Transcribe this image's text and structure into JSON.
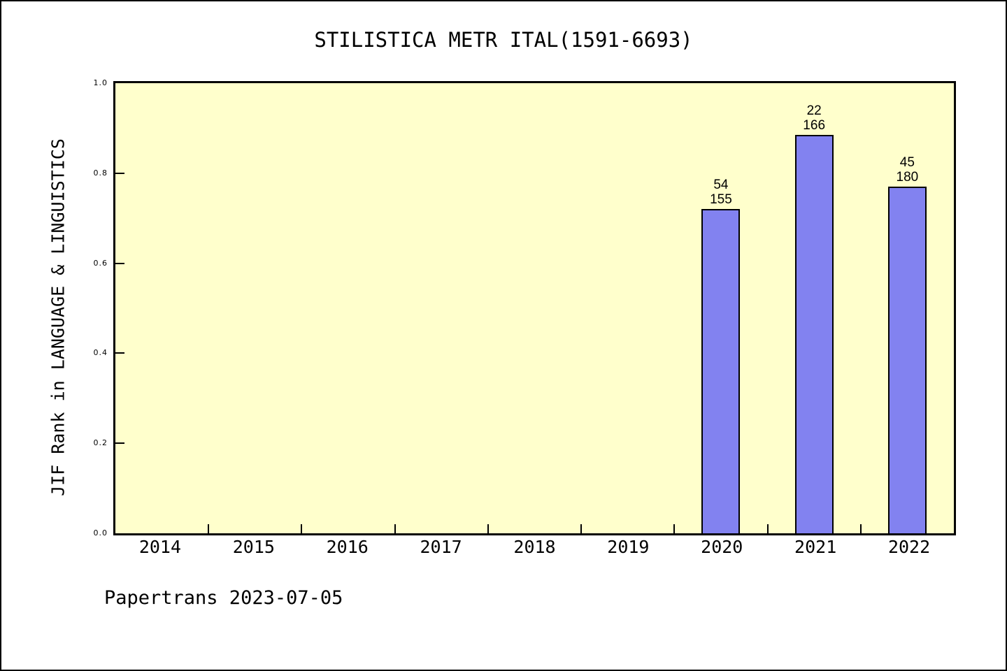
{
  "chart_data": {
    "type": "bar",
    "title": "STILISTICA METR ITAL(1591-6693)",
    "ylabel": "JIF Rank in LANGUAGE & LINGUISTICS",
    "xlabel": "",
    "categories": [
      "2014",
      "2015",
      "2016",
      "2017",
      "2018",
      "2019",
      "2020",
      "2021",
      "2022"
    ],
    "values": [
      null,
      null,
      null,
      null,
      null,
      null,
      0.72,
      0.885,
      0.77
    ],
    "bar_labels": [
      null,
      null,
      null,
      null,
      null,
      null,
      {
        "rank": "54",
        "total": "155"
      },
      {
        "rank": "22",
        "total": "166"
      },
      {
        "rank": "45",
        "total": "180"
      }
    ],
    "yticks": [
      "0.0",
      "0.2",
      "0.4",
      "0.6",
      "0.8",
      "1.0"
    ],
    "ytick_values": [
      0.0,
      0.2,
      0.4,
      0.6,
      0.8,
      1.0
    ],
    "ylim": [
      0.0,
      1.0
    ],
    "grid": false,
    "legend": null
  },
  "footer": {
    "text": "Papertrans 2023-07-05"
  },
  "colors": {
    "bar_fill": "#8282F0",
    "bar_border": "#000000",
    "plot_background": "#FFFFCC",
    "page_background": "#FFFFFF",
    "frame": "#000000",
    "text": "#000000"
  }
}
